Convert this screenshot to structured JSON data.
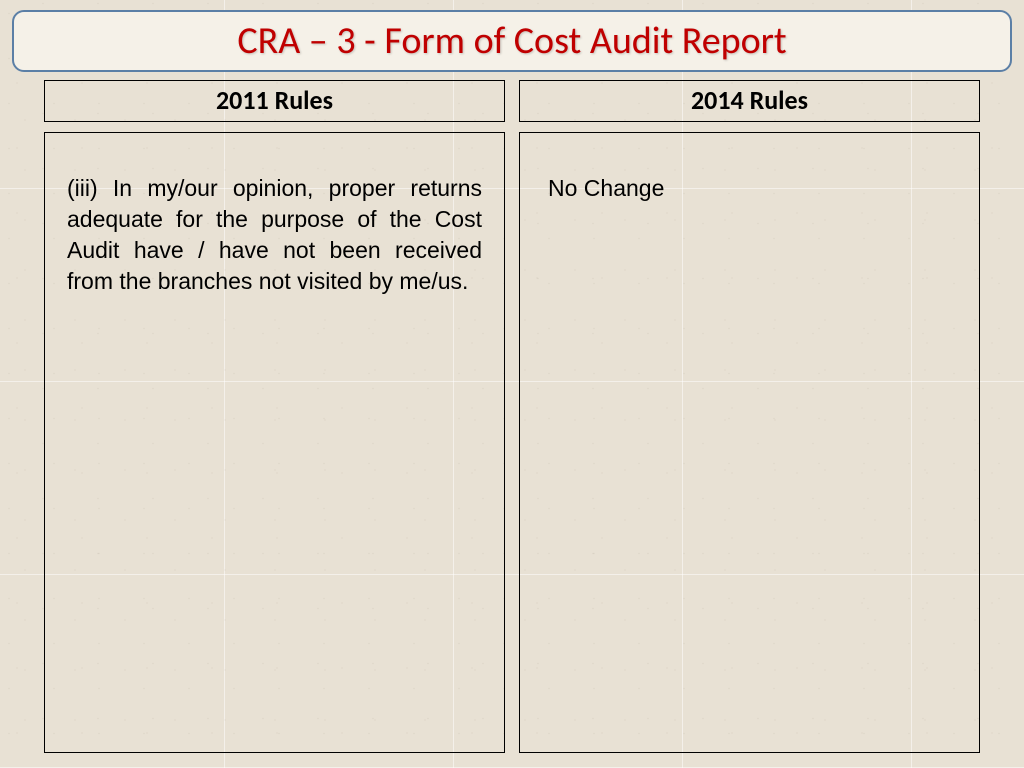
{
  "title": "CRA – 3 - Form of Cost Audit Report",
  "columns": {
    "left": {
      "header": "2011 Rules",
      "body": "(iii) In my/our opinion, proper returns adequate for the purpose of the Cost Audit have / have not been received from the branches not visited by me/us."
    },
    "right": {
      "header": "2014 Rules",
      "body": "No Change"
    }
  },
  "style": {
    "background_color": "#e8e1d4",
    "title_color": "#c00000",
    "title_border_color": "#5b7fa6",
    "title_bg_color": "#f5f1e8",
    "border_color": "#000000",
    "text_color": "#000000",
    "title_fontsize": 38,
    "header_fontsize": 26,
    "body_fontsize": 23
  }
}
